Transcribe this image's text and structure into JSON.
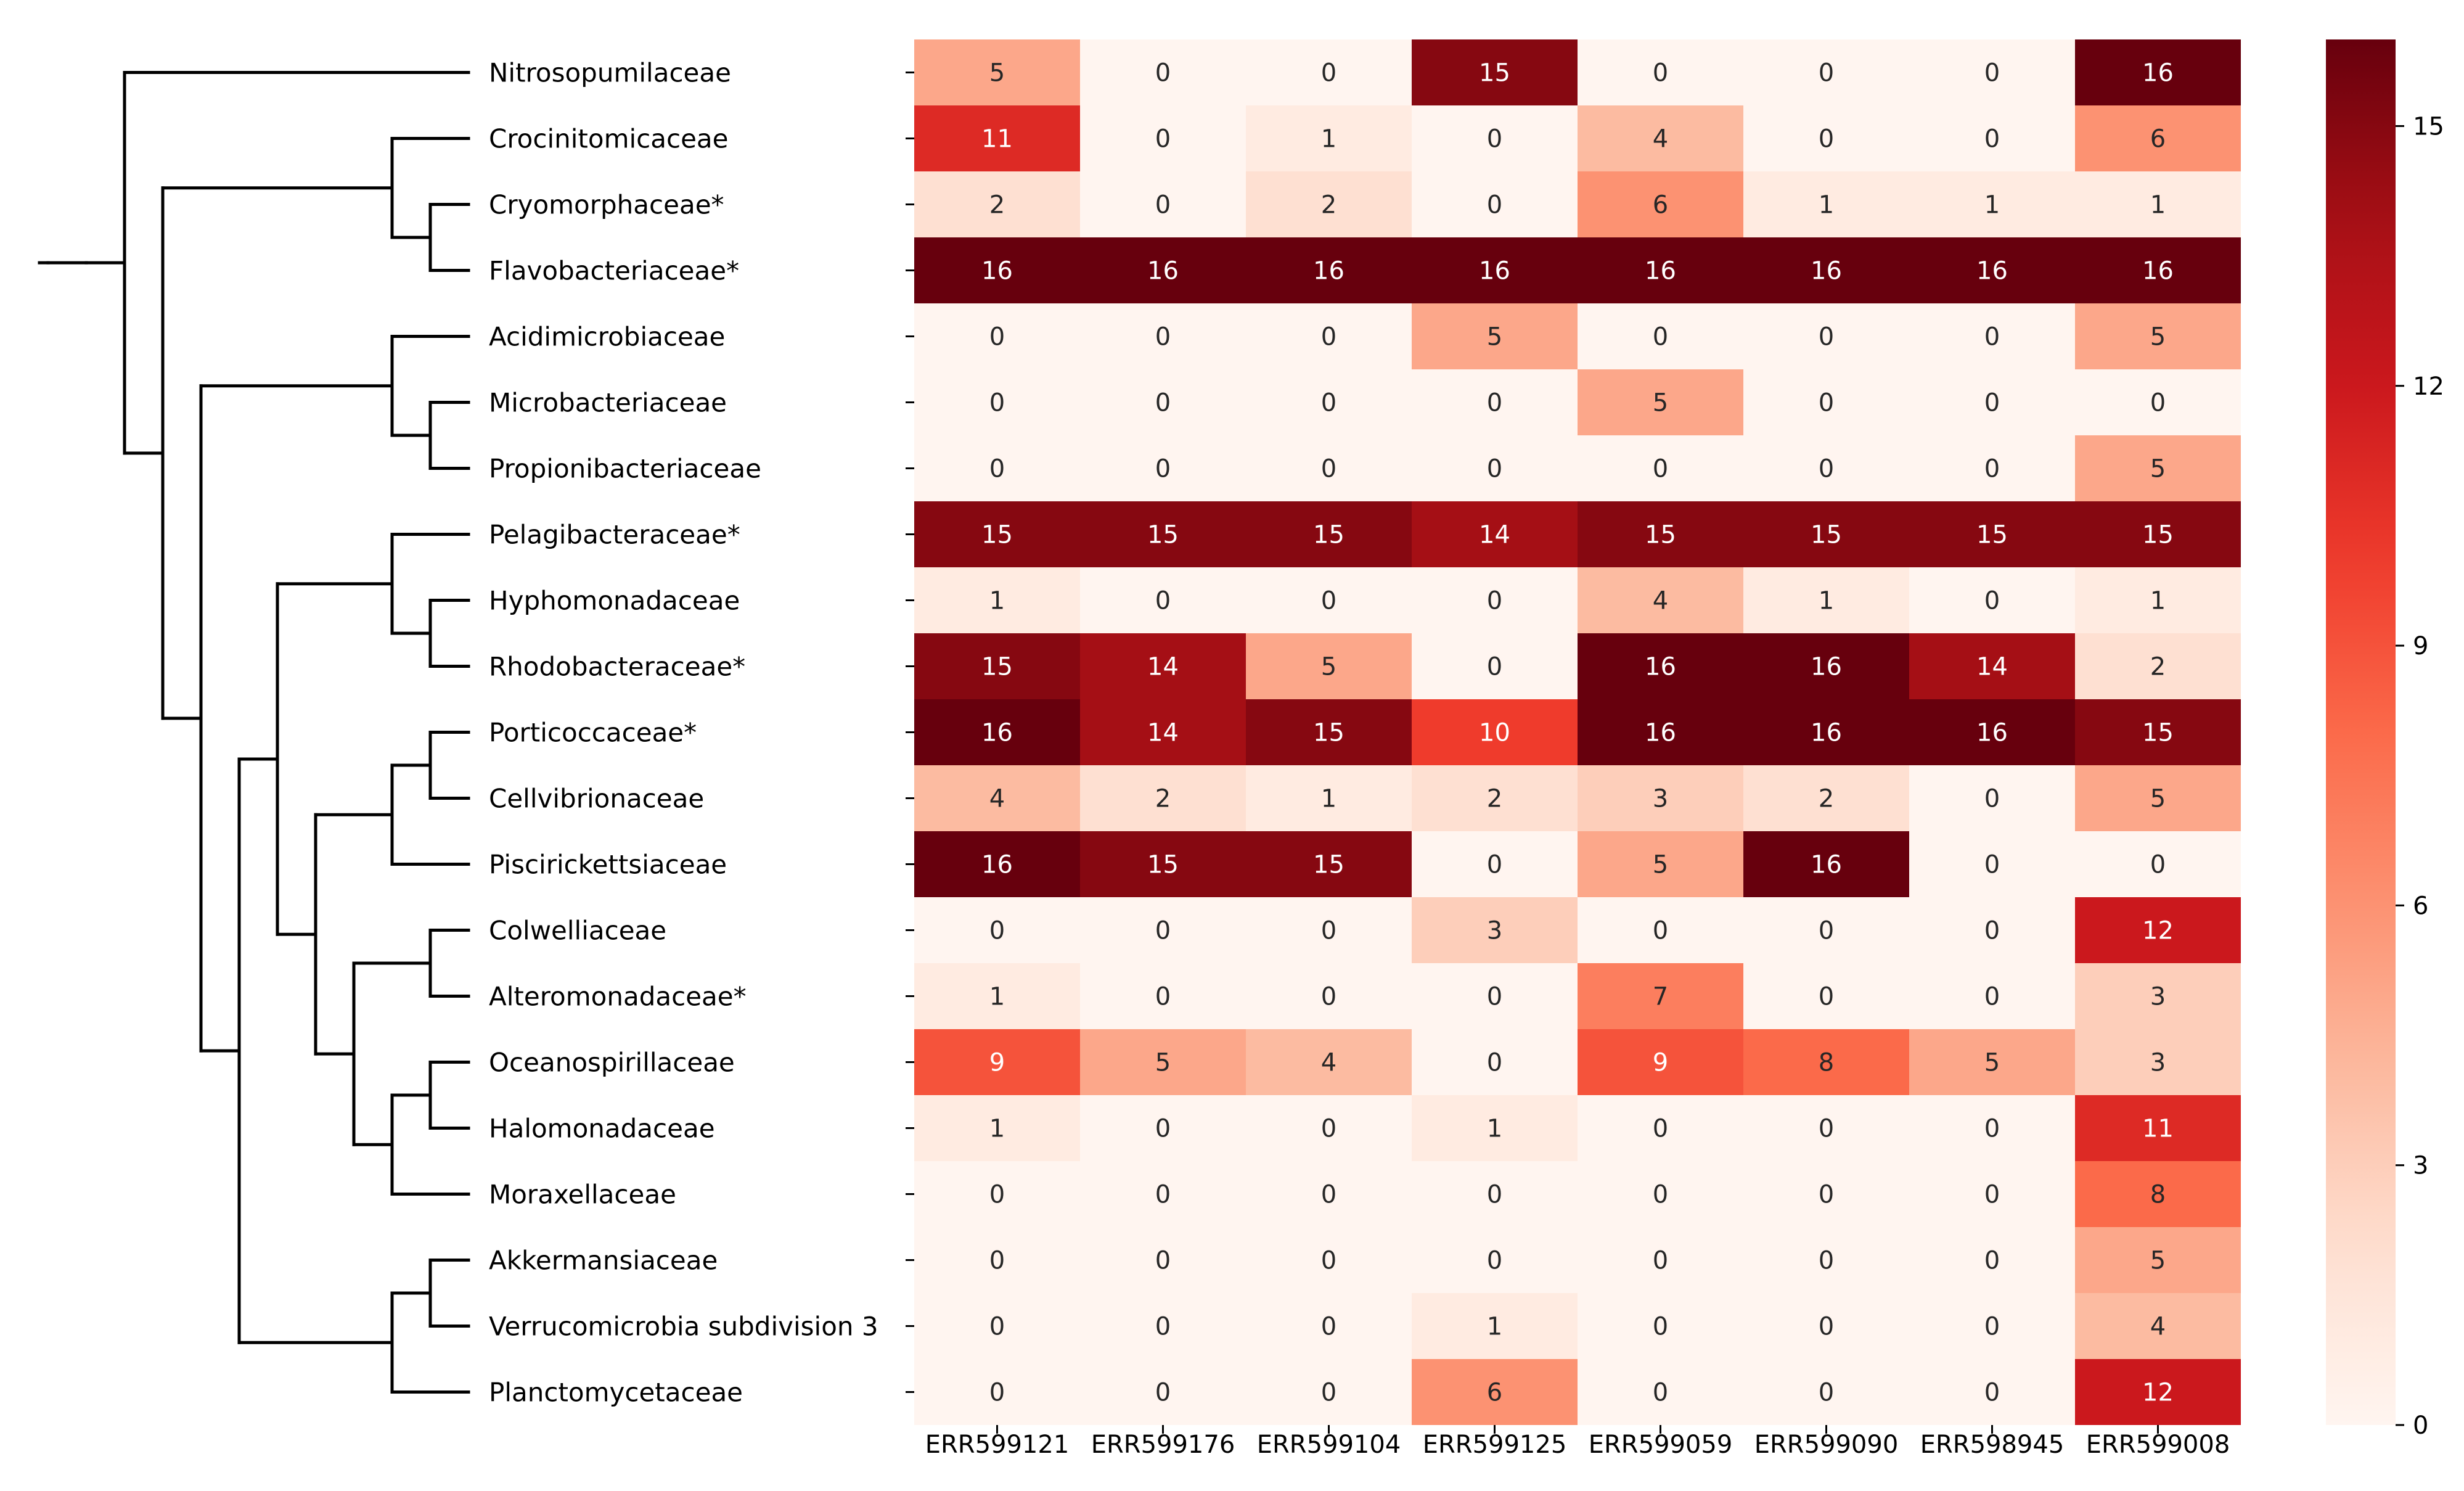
{
  "chart_data": {
    "type": "heatmap",
    "title": "",
    "xlabel": "",
    "ylabel": "",
    "colormap": "Reds",
    "value_range": [
      0,
      16
    ],
    "rows": [
      "Nitrosopumilaceae",
      "Crocinitomicaceae",
      "Cryomorphaceae*",
      "Flavobacteriaceae*",
      "Acidimicrobiaceae",
      "Microbacteriaceae",
      "Propionibacteriaceae",
      "Pelagibacteraceae*",
      "Hyphomonadaceae",
      "Rhodobacteraceae*",
      "Porticoccaceae*",
      "Cellvibrionaceae",
      "Piscirickettsiaceae",
      "Colwelliaceae",
      "Alteromonadaceae*",
      "Oceanospirillaceae",
      "Halomonadaceae",
      "Moraxellaceae",
      "Akkermansiaceae",
      "Verrucomicrobia subdivision 3",
      "Planctomycetaceae"
    ],
    "columns": [
      "ERR599121",
      "ERR599176",
      "ERR599104",
      "ERR599125",
      "ERR599059",
      "ERR599090",
      "ERR598945",
      "ERR599008"
    ],
    "values": [
      [
        5,
        0,
        0,
        15,
        0,
        0,
        0,
        16
      ],
      [
        11,
        0,
        1,
        0,
        4,
        0,
        0,
        6
      ],
      [
        2,
        0,
        2,
        0,
        6,
        1,
        1,
        1
      ],
      [
        16,
        16,
        16,
        16,
        16,
        16,
        16,
        16
      ],
      [
        0,
        0,
        0,
        5,
        0,
        0,
        0,
        5
      ],
      [
        0,
        0,
        0,
        0,
        5,
        0,
        0,
        0
      ],
      [
        0,
        0,
        0,
        0,
        0,
        0,
        0,
        5
      ],
      [
        15,
        15,
        15,
        14,
        15,
        15,
        15,
        15
      ],
      [
        1,
        0,
        0,
        0,
        4,
        1,
        0,
        1
      ],
      [
        15,
        14,
        5,
        0,
        16,
        16,
        14,
        2
      ],
      [
        16,
        14,
        15,
        10,
        16,
        16,
        16,
        15
      ],
      [
        4,
        2,
        1,
        2,
        3,
        2,
        0,
        5
      ],
      [
        16,
        15,
        15,
        0,
        5,
        16,
        0,
        0
      ],
      [
        0,
        0,
        0,
        3,
        0,
        0,
        0,
        12
      ],
      [
        1,
        0,
        0,
        0,
        7,
        0,
        0,
        3
      ],
      [
        9,
        5,
        4,
        0,
        9,
        8,
        5,
        3
      ],
      [
        1,
        0,
        0,
        1,
        0,
        0,
        0,
        11
      ],
      [
        0,
        0,
        0,
        0,
        0,
        0,
        0,
        8
      ],
      [
        0,
        0,
        0,
        0,
        0,
        0,
        0,
        5
      ],
      [
        0,
        0,
        0,
        1,
        0,
        0,
        0,
        4
      ],
      [
        0,
        0,
        0,
        6,
        0,
        0,
        0,
        12
      ]
    ],
    "colorbar": {
      "ticks": [
        0,
        3,
        6,
        9,
        12,
        15
      ],
      "labels": [
        "0",
        "3",
        "6",
        "9",
        "12",
        "15"
      ]
    },
    "dendrogram": {
      "orientation": "left",
      "tree": [
        [
          [
            0,
            [
              [
                1,
                [
                  2,
                  3
                ]
              ],
              [
                [
                  4,
                  [
                    5,
                    6
                  ]
                ],
                [
                  [
                    [
                      7,
                      [
                        8,
                        9
                      ]
                    ],
                    [
                      [
                        [
                          10,
                          11
                        ],
                        12
                      ],
                      [
                        [
                          13,
                          14
                        ],
                        [
                          [
                            15,
                            16
                          ],
                          17
                        ]
                      ]
                    ]
                  ],
                  [
                    [
                      18,
                      19
                    ],
                    20
                  ]
                ]
              ]
            ]
          ]
        ]
      ]
    }
  }
}
